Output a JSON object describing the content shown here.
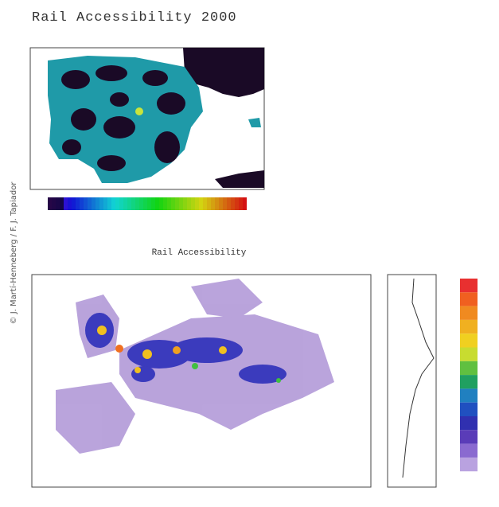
{
  "credit": "© J. Martí-Henneberg / F. J. Tapiador",
  "top_map": {
    "title": "Rail Accessibility 2000"
  },
  "bottom_map": {
    "title": "Rail Accessibility"
  }
}
